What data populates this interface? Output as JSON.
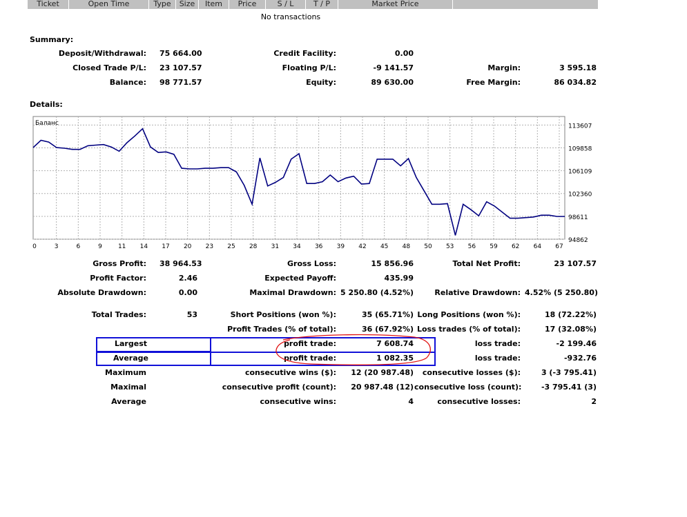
{
  "header": {
    "columns": [
      "Ticket",
      "Open Time",
      "Type",
      "Size",
      "Item",
      "Price",
      "S / L",
      "T / P",
      "Market Price"
    ],
    "empty_text": "No transactions"
  },
  "summary": {
    "title": "Summary:",
    "deposit_label": "Deposit/Withdrawal:",
    "deposit_value": "75 664.00",
    "credit_label": "Credit Facility:",
    "credit_value": "0.00",
    "closed_label": "Closed Trade P/L:",
    "closed_value": "23 107.57",
    "floating_label": "Floating P/L:",
    "floating_value": "-9 141.57",
    "margin_label": "Margin:",
    "margin_value": "3 595.18",
    "balance_label": "Balance:",
    "balance_value": "98 771.57",
    "equity_label": "Equity:",
    "equity_value": "89 630.00",
    "free_margin_label": "Free Margin:",
    "free_margin_value": "86 034.82"
  },
  "details": {
    "title": "Details:",
    "gross_profit_label": "Gross Profit:",
    "gross_profit_value": "38 964.53",
    "gross_loss_label": "Gross Loss:",
    "gross_loss_value": "15 856.96",
    "total_net_label": "Total Net Profit:",
    "total_net_value": "23 107.57",
    "profit_factor_label": "Profit Factor:",
    "profit_factor_value": "2.46",
    "expected_payoff_label": "Expected Payoff:",
    "expected_payoff_value": "435.99",
    "abs_dd_label": "Absolute Drawdown:",
    "abs_dd_value": "0.00",
    "max_dd_label": "Maximal Drawdown:",
    "max_dd_value": "5 250.80 (4.52%)",
    "rel_dd_label": "Relative Drawdown:",
    "rel_dd_value": "4.52% (5 250.80)",
    "total_trades_label": "Total Trades:",
    "total_trades_value": "53",
    "short_label": "Short Positions (won %):",
    "short_value": "35 (65.71%)",
    "long_label": "Long Positions (won %):",
    "long_value": "18 (72.22%)",
    "profit_trades_label": "Profit Trades (% of total):",
    "profit_trades_value": "36 (67.92%)",
    "loss_trades_label": "Loss trades (% of total):",
    "loss_trades_value": "17 (32.08%)",
    "largest_label": "Largest",
    "largest_profit_label": "profit trade:",
    "largest_profit_value": "7 608.74",
    "largest_loss_label": "loss trade:",
    "largest_loss_value": "-2 199.46",
    "average_label": "Average",
    "average_profit_label": "profit trade:",
    "average_profit_value": "1 082.35",
    "average_loss_label": "loss trade:",
    "average_loss_value": "-932.76",
    "maximum_label": "Maximum",
    "max_cons_wins_label": "consecutive wins ($):",
    "max_cons_wins_value": "12 (20 987.48)",
    "max_cons_losses_label": "consecutive losses ($):",
    "max_cons_losses_value": "3 (-3 795.41)",
    "maximal_label": "Maximal",
    "maximal_profit_label": "consecutive profit (count):",
    "maximal_profit_value": "20 987.48 (12)",
    "maximal_loss_label": "consecutive loss (count):",
    "maximal_loss_value": "-3 795.41 (3)",
    "average2_label": "Average",
    "avg_cons_wins_label": "consecutive wins:",
    "avg_cons_wins_value": "4",
    "avg_cons_losses_label": "consecutive losses:",
    "avg_cons_losses_value": "2"
  },
  "chart_data": {
    "type": "line",
    "title": "Баланс",
    "x_ticks": [
      "0",
      "3",
      "6",
      "9",
      "11",
      "14",
      "17",
      "20",
      "23",
      "25",
      "28",
      "31",
      "34",
      "36",
      "39",
      "42",
      "45",
      "48",
      "50",
      "53",
      "56",
      "59",
      "62",
      "64",
      "67"
    ],
    "y_ticks": [
      "113607",
      "109858",
      "106109",
      "102360",
      "98611",
      "94862"
    ],
    "ylim": [
      94862,
      115000
    ],
    "xlim": [
      0,
      68
    ],
    "grid": true,
    "line_color": "#000080",
    "x": [
      0,
      1,
      2,
      3,
      4,
      5,
      6,
      7,
      8,
      9,
      10,
      11,
      12,
      13,
      14,
      15,
      16,
      17,
      18,
      19,
      20,
      21,
      22,
      23,
      24,
      25,
      26,
      27,
      28,
      29,
      30,
      31,
      32,
      33,
      34,
      35,
      36,
      37,
      38,
      39,
      40,
      41,
      42,
      43,
      44,
      45,
      46,
      47,
      48,
      49,
      50,
      51,
      52,
      53,
      54,
      55,
      56,
      57,
      58,
      59,
      60,
      61,
      62,
      63,
      64,
      65,
      66,
      67,
      68
    ],
    "values": [
      109900,
      111100,
      110800,
      109900,
      109800,
      109600,
      109600,
      110200,
      110300,
      110400,
      110000,
      109300,
      110700,
      111800,
      113000,
      110000,
      109100,
      109200,
      108800,
      106500,
      106400,
      106400,
      106500,
      106500,
      106600,
      106600,
      105900,
      103700,
      100600,
      108200,
      103600,
      104200,
      105000,
      108000,
      108900,
      104000,
      104000,
      104300,
      105400,
      104300,
      104900,
      105200,
      103900,
      104000,
      108000,
      108000,
      108000,
      106900,
      108100,
      105000,
      102800,
      100600,
      100600,
      100700,
      95500,
      100600,
      99700,
      98700,
      101000,
      100300,
      99300,
      98300,
      98300,
      98400,
      98500,
      98800,
      98800,
      98600,
      98600
    ]
  }
}
